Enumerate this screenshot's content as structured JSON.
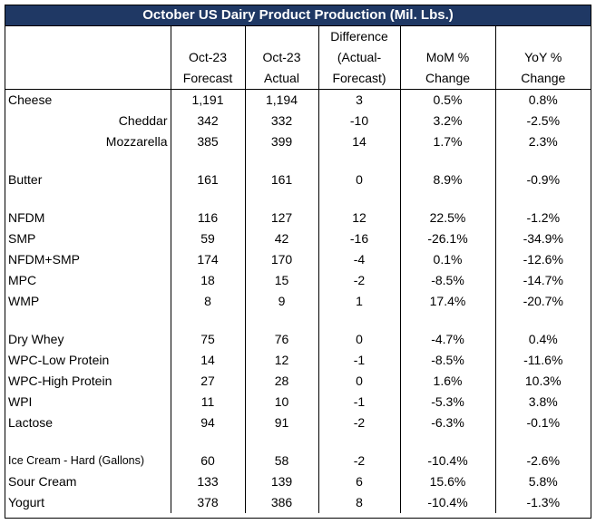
{
  "title": "October US Dairy Product Production (Mil. Lbs.)",
  "columns": [
    {
      "lines": [
        "",
        "Oct-23",
        "Forecast"
      ]
    },
    {
      "lines": [
        "",
        "Oct-23",
        "Actual"
      ]
    },
    {
      "lines": [
        "Difference",
        "(Actual-",
        "Forecast)"
      ]
    },
    {
      "lines": [
        "",
        "MoM %",
        "Change"
      ]
    },
    {
      "lines": [
        "",
        "YoY %",
        "Change"
      ]
    }
  ],
  "groups": [
    {
      "rows": [
        {
          "name": "Cheese",
          "forecast": "1,191",
          "actual": "1,194",
          "diff": "3",
          "mom": "0.5%",
          "yoy": "0.8%"
        },
        {
          "name": "Cheddar",
          "sub": true,
          "forecast": "342",
          "actual": "332",
          "diff": "-10",
          "mom": "3.2%",
          "yoy": "-2.5%"
        },
        {
          "name": "Mozzarella",
          "sub": true,
          "forecast": "385",
          "actual": "399",
          "diff": "14",
          "mom": "1.7%",
          "yoy": "2.3%"
        }
      ]
    },
    {
      "rows": [
        {
          "name": "Butter",
          "forecast": "161",
          "actual": "161",
          "diff": "0",
          "mom": "8.9%",
          "yoy": "-0.9%"
        }
      ]
    },
    {
      "rows": [
        {
          "name": "NFDM",
          "forecast": "116",
          "actual": "127",
          "diff": "12",
          "mom": "22.5%",
          "yoy": "-1.2%"
        },
        {
          "name": "SMP",
          "forecast": "59",
          "actual": "42",
          "diff": "-16",
          "mom": "-26.1%",
          "yoy": "-34.9%"
        },
        {
          "name": "NFDM+SMP",
          "forecast": "174",
          "actual": "170",
          "diff": "-4",
          "mom": "0.1%",
          "yoy": "-12.6%"
        },
        {
          "name": "MPC",
          "forecast": "18",
          "actual": "15",
          "diff": "-2",
          "mom": "-8.5%",
          "yoy": "-14.7%"
        },
        {
          "name": "WMP",
          "forecast": "8",
          "actual": "9",
          "diff": "1",
          "mom": "17.4%",
          "yoy": "-20.7%"
        }
      ]
    },
    {
      "rows": [
        {
          "name": "Dry Whey",
          "forecast": "75",
          "actual": "76",
          "diff": "0",
          "mom": "-4.7%",
          "yoy": "0.4%"
        },
        {
          "name": "WPC-Low Protein",
          "forecast": "14",
          "actual": "12",
          "diff": "-1",
          "mom": "-8.5%",
          "yoy": "-11.6%"
        },
        {
          "name": "WPC-High Protein",
          "forecast": "27",
          "actual": "28",
          "diff": "0",
          "mom": "1.6%",
          "yoy": "10.3%"
        },
        {
          "name": "WPI",
          "forecast": "11",
          "actual": "10",
          "diff": "-1",
          "mom": "-5.3%",
          "yoy": "3.8%"
        },
        {
          "name": "Lactose",
          "forecast": "94",
          "actual": "91",
          "diff": "-2",
          "mom": "-6.3%",
          "yoy": "-0.1%"
        }
      ]
    },
    {
      "rows": [
        {
          "name": "Ice Cream - Hard (Gallons)",
          "small": true,
          "forecast": "60",
          "actual": "58",
          "diff": "-2",
          "mom": "-10.4%",
          "yoy": "-2.6%"
        },
        {
          "name": "Sour Cream",
          "forecast": "133",
          "actual": "139",
          "diff": "6",
          "mom": "15.6%",
          "yoy": "5.8%"
        },
        {
          "name": "Yogurt",
          "forecast": "378",
          "actual": "386",
          "diff": "8",
          "mom": "-10.4%",
          "yoy": "-1.3%"
        }
      ]
    }
  ]
}
